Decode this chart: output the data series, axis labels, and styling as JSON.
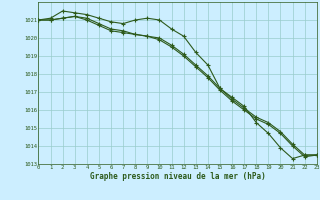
{
  "title": "Graphe pression niveau de la mer (hPa)",
  "background_color": "#cceeff",
  "grid_color": "#99cccc",
  "line_color": "#2d5a1b",
  "xlim": [
    0,
    23
  ],
  "ylim": [
    1013,
    1022
  ],
  "yticks": [
    1013,
    1014,
    1015,
    1016,
    1017,
    1018,
    1019,
    1020,
    1021
  ],
  "xticks": [
    0,
    1,
    2,
    3,
    4,
    5,
    6,
    7,
    8,
    9,
    10,
    11,
    12,
    13,
    14,
    15,
    16,
    17,
    18,
    19,
    20,
    21,
    22,
    23
  ],
  "series1": [
    1021.0,
    1021.1,
    1021.5,
    1021.4,
    1021.3,
    1021.1,
    1020.9,
    1020.8,
    1021.0,
    1021.1,
    1021.0,
    1020.5,
    1020.1,
    1019.2,
    1018.5,
    1017.2,
    1016.7,
    1016.2,
    1015.3,
    1014.7,
    1013.9,
    1013.3,
    1013.5,
    1013.5
  ],
  "series2": [
    1021.0,
    1021.0,
    1021.1,
    1021.2,
    1021.0,
    1020.7,
    1020.4,
    1020.3,
    1020.2,
    1020.1,
    1019.9,
    1019.5,
    1019.0,
    1018.4,
    1017.8,
    1017.1,
    1016.5,
    1016.0,
    1015.5,
    1015.2,
    1014.7,
    1014.0,
    1013.4,
    1013.5
  ],
  "series3": [
    1021.0,
    1021.0,
    1021.1,
    1021.2,
    1021.1,
    1020.8,
    1020.5,
    1020.4,
    1020.2,
    1020.1,
    1020.0,
    1019.6,
    1019.1,
    1018.5,
    1017.9,
    1017.2,
    1016.6,
    1016.1,
    1015.6,
    1015.3,
    1014.8,
    1014.1,
    1013.5,
    1013.5
  ],
  "figwidth": 3.2,
  "figheight": 2.0,
  "dpi": 100
}
